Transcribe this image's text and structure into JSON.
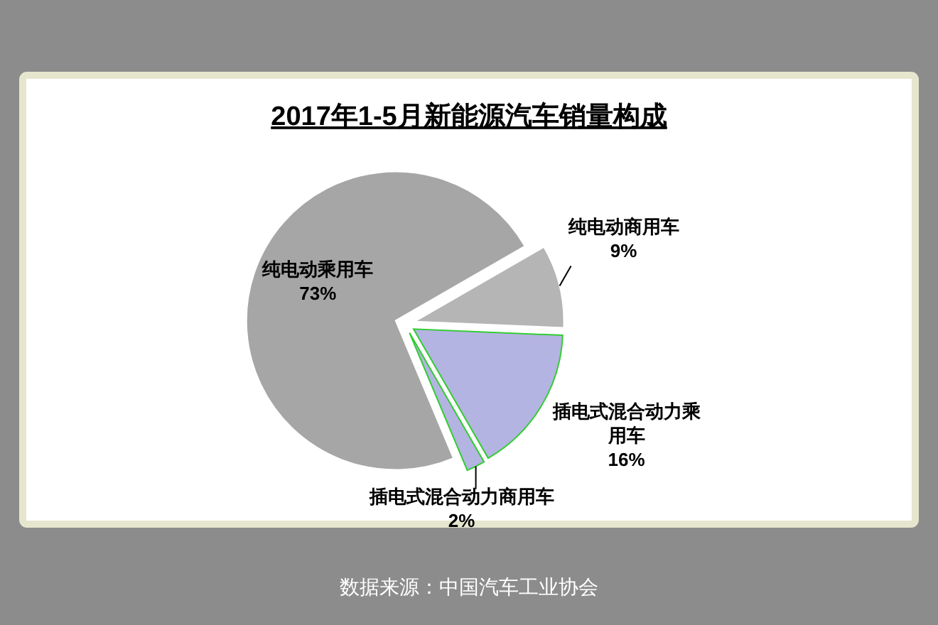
{
  "chart_data": {
    "type": "pie",
    "title": "2017年1-5月新能源汽车销量构成",
    "categories": [
      "纯电动乘用车",
      "纯电动商用车",
      "插电式混合动力乘用车",
      "插电式混合动力商用车"
    ],
    "values": [
      73,
      9,
      16,
      2
    ],
    "colors": [
      "#a6a6a6",
      "#b5b5b5",
      "#b4b4e2",
      "#b4b4e2"
    ],
    "value_labels": [
      "73%",
      "9%",
      "16%",
      "2%"
    ],
    "annotations": [
      "数据来源：中国汽车工业协会"
    ]
  }
}
